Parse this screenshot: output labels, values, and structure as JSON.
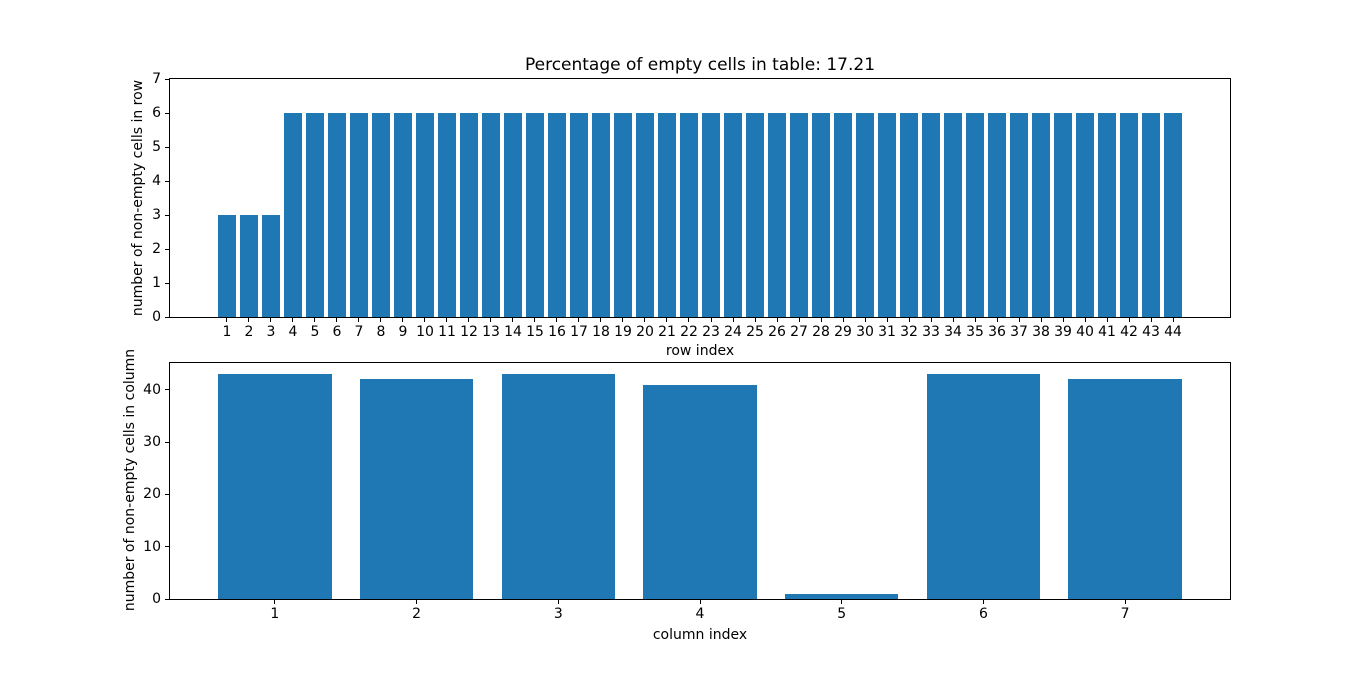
{
  "figure": {
    "background": "#ffffff",
    "bar_color": "#1f77b4",
    "axis_color": "#000000"
  },
  "chart_data": [
    {
      "type": "bar",
      "title": "Percentage of empty cells in table: 17.21",
      "xlabel": "row index",
      "ylabel": "number of non-empty cells in row",
      "categories": [
        "1",
        "2",
        "3",
        "4",
        "5",
        "6",
        "7",
        "8",
        "9",
        "10",
        "11",
        "12",
        "13",
        "14",
        "15",
        "16",
        "17",
        "18",
        "19",
        "20",
        "21",
        "22",
        "23",
        "24",
        "25",
        "26",
        "27",
        "28",
        "29",
        "30",
        "31",
        "32",
        "33",
        "34",
        "35",
        "36",
        "37",
        "38",
        "39",
        "40",
        "41",
        "42",
        "43",
        "44"
      ],
      "values": [
        3,
        3,
        3,
        6,
        6,
        6,
        6,
        6,
        6,
        6,
        6,
        6,
        6,
        6,
        6,
        6,
        6,
        6,
        6,
        6,
        6,
        6,
        6,
        6,
        6,
        6,
        6,
        6,
        6,
        6,
        6,
        6,
        6,
        6,
        6,
        6,
        6,
        6,
        6,
        6,
        6,
        6,
        6,
        6
      ],
      "ylim": [
        0,
        7
      ],
      "yticks": [
        0,
        1,
        2,
        3,
        4,
        5,
        6,
        7
      ],
      "bar_width": 0.8,
      "grid": false,
      "legend": null
    },
    {
      "type": "bar",
      "title": "",
      "xlabel": "column index",
      "ylabel": "number of non-empty cells in column",
      "categories": [
        "1",
        "2",
        "3",
        "4",
        "5",
        "6",
        "7"
      ],
      "values": [
        43,
        42,
        43,
        41,
        1,
        43,
        42
      ],
      "ylim": [
        0,
        45.15
      ],
      "yticks": [
        0,
        10,
        20,
        30,
        40
      ],
      "bar_width": 0.8,
      "grid": false,
      "legend": null
    }
  ]
}
